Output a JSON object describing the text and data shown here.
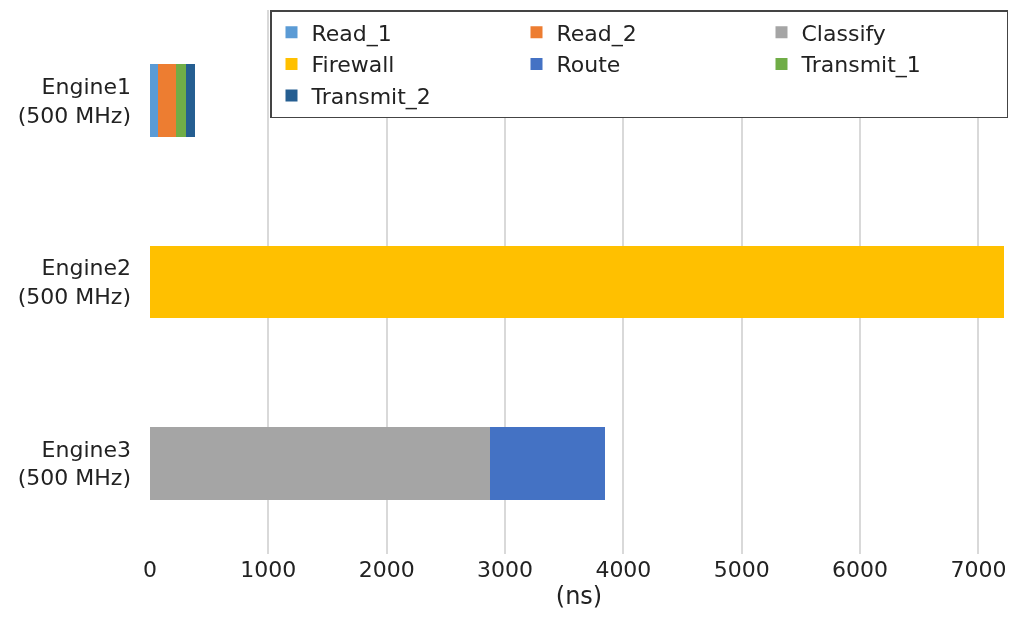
{
  "chart_data": {
    "type": "bar",
    "orientation": "horizontal",
    "stacked": true,
    "xlabel": "(ns)",
    "categories": [
      "Engine1\n(500 MHz)",
      "Engine2\n(500 MHz)",
      "Engine3\n(500 MHz)"
    ],
    "series": [
      {
        "name": "Read_1",
        "color": "#5b9bd5",
        "values": [
          70,
          null,
          null
        ]
      },
      {
        "name": "Read_2",
        "color": "#ed7d31",
        "values": [
          148,
          null,
          null
        ]
      },
      {
        "name": "Classify",
        "color": "#a5a5a5",
        "values": [
          null,
          null,
          2873
        ]
      },
      {
        "name": "Firewall",
        "color": "#ffc000",
        "values": [
          null,
          7220,
          null
        ]
      },
      {
        "name": "Route",
        "color": "#4472c4",
        "values": [
          null,
          null,
          972
        ]
      },
      {
        "name": "Transmit_1",
        "color": "#70ad47",
        "values": [
          87,
          null,
          null
        ]
      },
      {
        "name": "Transmit_2",
        "color": "#255e91",
        "values": [
          78,
          null,
          null
        ]
      }
    ],
    "xlim": [
      0,
      7250
    ],
    "xticks": [
      0,
      1000,
      2000,
      3000,
      4000,
      5000,
      6000,
      7000
    ],
    "grid": "x",
    "legend": "top right"
  }
}
